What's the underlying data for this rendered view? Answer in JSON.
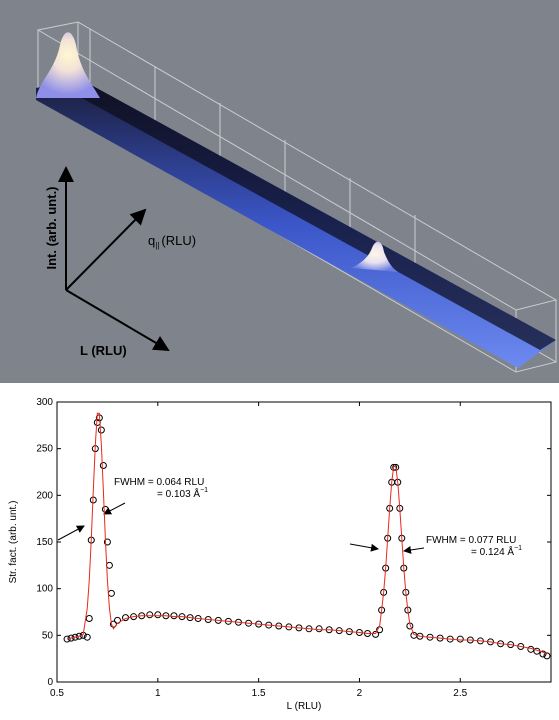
{
  "render": {
    "axis_labels": {
      "intensity": "Int. (arb. unt.)",
      "q_symbol": "q",
      "q_subscript": "||",
      "q_unit": "(RLU)",
      "l": "L (RLU)"
    }
  },
  "chart_data": {
    "type": "scatter",
    "x_label": "L (RLU)",
    "y_label": "Str. fact. (arb. unt.)",
    "xlim": [
      0.5,
      2.95
    ],
    "ylim": [
      0,
      300
    ],
    "xticks": [
      0.5,
      1,
      1.5,
      2,
      2.5
    ],
    "yticks": [
      0,
      50,
      100,
      150,
      200,
      250,
      300
    ],
    "x": [
      0.55,
      0.57,
      0.59,
      0.61,
      0.63,
      0.65,
      0.66,
      0.67,
      0.68,
      0.69,
      0.7,
      0.71,
      0.72,
      0.73,
      0.74,
      0.75,
      0.76,
      0.77,
      0.78,
      0.8,
      0.84,
      0.88,
      0.92,
      0.96,
      1.0,
      1.04,
      1.08,
      1.12,
      1.16,
      1.2,
      1.25,
      1.3,
      1.35,
      1.4,
      1.45,
      1.5,
      1.55,
      1.6,
      1.65,
      1.7,
      1.75,
      1.8,
      1.85,
      1.9,
      1.95,
      2.0,
      2.04,
      2.08,
      2.1,
      2.11,
      2.12,
      2.13,
      2.14,
      2.15,
      2.16,
      2.17,
      2.18,
      2.19,
      2.2,
      2.21,
      2.22,
      2.23,
      2.24,
      2.25,
      2.27,
      2.3,
      2.35,
      2.4,
      2.45,
      2.5,
      2.55,
      2.6,
      2.65,
      2.7,
      2.75,
      2.8,
      2.85,
      2.88,
      2.91,
      2.93
    ],
    "series": [
      {
        "color": "#000000",
        "style": "markers",
        "values": [
          46,
          47,
          48,
          49,
          50,
          48,
          68,
          152,
          195,
          250,
          278,
          283,
          270,
          232,
          185,
          150,
          125,
          95,
          62,
          66,
          69,
          70,
          71,
          72,
          72,
          71,
          71,
          70,
          69,
          68,
          67,
          66,
          65,
          64,
          63,
          62,
          61,
          60,
          59,
          58,
          57,
          57,
          56,
          55,
          54,
          53,
          52,
          51,
          56,
          77,
          96,
          122,
          154,
          186,
          214,
          230,
          230,
          214,
          186,
          154,
          122,
          96,
          77,
          60,
          50,
          49,
          48,
          47,
          46,
          46,
          45,
          44,
          43,
          41,
          40,
          38,
          35,
          33,
          30,
          28
        ]
      },
      {
        "color": "#e8291c",
        "style": "line",
        "values": [
          46,
          47,
          48,
          49,
          51,
          79,
          109,
          153,
          205,
          254,
          288,
          288,
          254,
          205,
          153,
          109,
          79,
          62,
          57,
          63,
          68,
          70,
          71,
          71,
          71,
          71,
          70,
          70,
          69,
          68,
          67,
          66,
          65,
          64,
          63,
          62,
          61,
          60,
          59,
          58,
          57,
          56,
          56,
          55,
          54,
          53,
          52,
          52,
          60,
          77,
          96,
          122,
          154,
          186,
          214,
          231,
          231,
          214,
          186,
          154,
          122,
          96,
          77,
          62,
          51,
          49,
          48,
          47,
          46,
          45,
          45,
          44,
          43,
          41,
          40,
          38,
          36,
          34,
          32,
          30
        ]
      }
    ],
    "annotations": [
      {
        "line1": "FWHM = 0.064 RLU",
        "line2": "= 0.103 Å",
        "sup": "−1"
      },
      {
        "line1": "FWHM = 0.077 RLU",
        "line2": "= 0.124 Å",
        "sup": "−1"
      }
    ]
  }
}
